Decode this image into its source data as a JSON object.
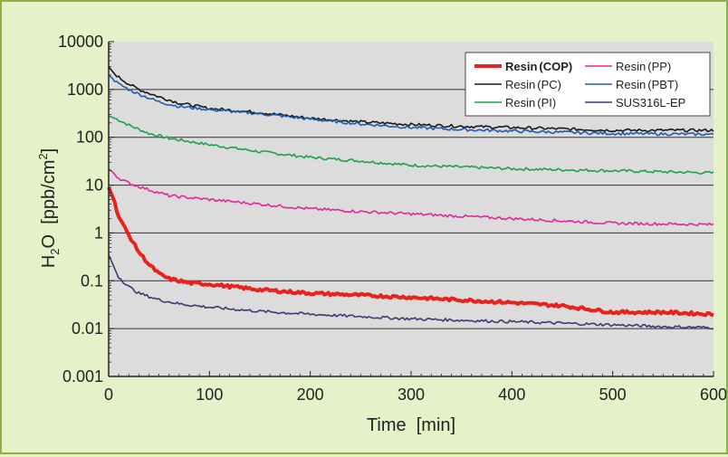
{
  "chart_data": {
    "type": "line",
    "title": "",
    "xlabel": "Time  [min]",
    "ylabel": "H2O  [ppb/cm2]",
    "ylabel_main": "H",
    "ylabel_sub": "2",
    "ylabel_rest": "O  [ppb/cm",
    "ylabel_sup": "2",
    "ylabel_end": "]",
    "xlim": [
      0,
      600
    ],
    "ylim": [
      0.001,
      10000
    ],
    "yscale": "log",
    "grid": "horizontal",
    "legend_placement": "top-right",
    "xticks": [
      "0",
      "100",
      "200",
      "300",
      "400",
      "500",
      "600"
    ],
    "yticks": [
      "0.001",
      "0.01",
      "0.1",
      "1",
      "10",
      "100",
      "1000",
      "10000"
    ],
    "colors": {
      "plot_bg": "#dcdcdc",
      "page_bg": "#e6f0c9",
      "frame": "#8fb045"
    },
    "series": [
      {
        "name": "Resin (COP)",
        "legend_main": "Resin",
        "legend_paren": "(COP)",
        "bold": true,
        "color": "#e8231e",
        "x": [
          0,
          5,
          10,
          20,
          30,
          40,
          50,
          60,
          80,
          100,
          150,
          200,
          250,
          300,
          400,
          450,
          500,
          550,
          600
        ],
        "y": [
          9,
          5,
          2.2,
          0.9,
          0.4,
          0.22,
          0.14,
          0.11,
          0.09,
          0.085,
          0.065,
          0.055,
          0.05,
          0.045,
          0.035,
          0.03,
          0.022,
          0.022,
          0.02
        ]
      },
      {
        "name": "Resin (PP)",
        "legend_main": "Resin",
        "legend_paren": "(PP)",
        "bold": false,
        "color": "#e0289b",
        "x": [
          0,
          5,
          10,
          20,
          40,
          60,
          100,
          150,
          200,
          250,
          300,
          400,
          500,
          600
        ],
        "y": [
          22,
          18,
          14,
          11,
          8,
          6,
          5,
          4,
          3.2,
          2.8,
          2.5,
          2.0,
          1.6,
          1.5
        ]
      },
      {
        "name": "Resin (PC)",
        "legend_main": "Resin",
        "legend_paren": "(PC)",
        "bold": false,
        "color": "#1a1a1a",
        "x": [
          0,
          5,
          10,
          20,
          30,
          50,
          70,
          100,
          150,
          200,
          250,
          300,
          350,
          400,
          500,
          600
        ],
        "y": [
          3000,
          2200,
          1800,
          1300,
          1000,
          700,
          520,
          400,
          330,
          250,
          210,
          185,
          170,
          160,
          140,
          140
        ]
      },
      {
        "name": "Resin (PBT)",
        "legend_main": "Resin",
        "legend_paren": "(PBT)",
        "bold": false,
        "color": "#1f5bb5",
        "x": [
          0,
          5,
          10,
          20,
          30,
          50,
          70,
          100,
          150,
          200,
          250,
          300,
          350,
          400,
          500,
          600
        ],
        "y": [
          2000,
          1600,
          1300,
          1000,
          800,
          550,
          440,
          380,
          310,
          240,
          190,
          160,
          145,
          135,
          120,
          115
        ]
      },
      {
        "name": "Resin (PI)",
        "legend_main": "Resin",
        "legend_paren": "(PI)",
        "bold": false,
        "color": "#20a04a",
        "x": [
          0,
          10,
          20,
          40,
          60,
          100,
          150,
          200,
          250,
          300,
          400,
          500,
          600
        ],
        "y": [
          280,
          230,
          180,
          120,
          95,
          70,
          50,
          38,
          32,
          26,
          22,
          20,
          18
        ]
      },
      {
        "name": "SUS316L-EP",
        "legend_main": "SUS316L-EP",
        "legend_paren": "",
        "bold": false,
        "color": "#3a3a7a",
        "x": [
          0,
          5,
          10,
          20,
          30,
          50,
          70,
          100,
          150,
          200,
          300,
          400,
          500,
          550,
          600
        ],
        "y": [
          0.35,
          0.2,
          0.12,
          0.075,
          0.055,
          0.04,
          0.033,
          0.028,
          0.023,
          0.02,
          0.016,
          0.014,
          0.012,
          0.011,
          0.0105
        ]
      }
    ]
  }
}
